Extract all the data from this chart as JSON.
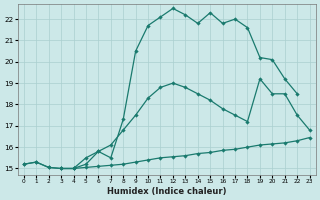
{
  "xlabel": "Humidex (Indice chaleur)",
  "xlim": [
    -0.5,
    23.5
  ],
  "ylim": [
    14.7,
    22.7
  ],
  "yticks": [
    15,
    16,
    17,
    18,
    19,
    20,
    21,
    22
  ],
  "xticks": [
    0,
    1,
    2,
    3,
    4,
    5,
    6,
    7,
    8,
    9,
    10,
    11,
    12,
    13,
    14,
    15,
    16,
    17,
    18,
    19,
    20,
    21,
    22,
    23
  ],
  "bg_color": "#cce8e8",
  "grid_color": "#aacfcf",
  "line_color": "#1a7a6e",
  "series": [
    {
      "x": [
        0,
        1,
        2,
        3,
        4,
        5,
        6,
        7,
        8,
        9,
        10,
        11,
        12,
        13,
        14,
        15,
        16,
        17,
        18,
        19,
        20,
        21,
        22,
        23
      ],
      "y": [
        15.2,
        15.3,
        15.05,
        15.0,
        15.0,
        15.05,
        15.1,
        15.15,
        15.2,
        15.3,
        15.4,
        15.5,
        15.55,
        15.6,
        15.7,
        15.75,
        15.85,
        15.9,
        16.0,
        16.1,
        16.15,
        16.2,
        16.3,
        16.45
      ]
    },
    {
      "x": [
        0,
        1,
        2,
        3,
        4,
        5,
        6,
        7,
        8,
        9,
        10,
        11,
        12,
        13,
        14,
        15,
        16,
        17,
        18,
        19,
        20,
        21,
        22,
        23
      ],
      "y": [
        15.2,
        15.3,
        15.05,
        15.0,
        15.0,
        15.2,
        15.8,
        16.1,
        16.8,
        17.5,
        18.3,
        18.8,
        19.0,
        18.8,
        18.5,
        18.2,
        17.8,
        17.5,
        17.2,
        19.2,
        18.5,
        18.5,
        17.5,
        16.8
      ]
    },
    {
      "x": [
        3,
        4,
        5,
        6,
        7,
        8,
        9,
        10,
        11,
        12,
        13,
        14,
        15,
        16,
        17,
        18,
        19,
        20,
        21,
        22
      ],
      "y": [
        15.0,
        15.0,
        15.5,
        15.8,
        15.5,
        17.3,
        20.5,
        21.7,
        22.1,
        22.5,
        22.2,
        21.8,
        22.3,
        21.8,
        22.0,
        21.6,
        20.2,
        20.1,
        19.2,
        18.5
      ]
    }
  ]
}
